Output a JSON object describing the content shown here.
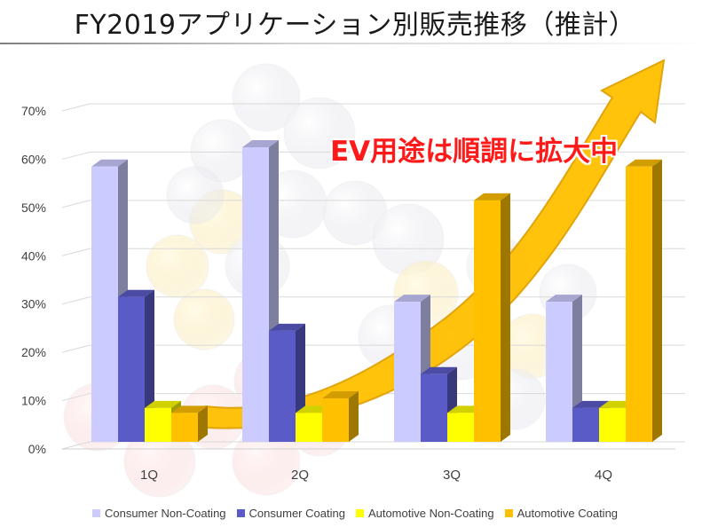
{
  "title": "FY2019アプリケーション別販売推移（推計）",
  "callout": "EV用途は順調に拡大中",
  "chart_data": {
    "type": "bar",
    "categories": [
      "1Q",
      "2Q",
      "3Q",
      "4Q"
    ],
    "series": [
      {
        "name": "Consumer Non-Coating",
        "values": [
          57,
          61,
          29,
          29
        ],
        "color": "#cbcbff"
      },
      {
        "name": "Consumer Coating",
        "values": [
          30,
          23,
          14,
          7
        ],
        "color": "#5b5bc8"
      },
      {
        "name": "Automotive Non-Coating",
        "values": [
          7,
          6,
          6,
          7
        ],
        "color": "#ffff00"
      },
      {
        "name": "Automotive Coating",
        "values": [
          6,
          9,
          50,
          57
        ],
        "color": "#ffc000"
      }
    ],
    "yticks": [
      "0%",
      "10%",
      "20%",
      "30%",
      "40%",
      "50%",
      "60%",
      "70%"
    ],
    "ylim": [
      0,
      70
    ],
    "grid": true,
    "three_d": true,
    "legend_position": "bottom",
    "trend_arrow_color": "#ffc000"
  }
}
